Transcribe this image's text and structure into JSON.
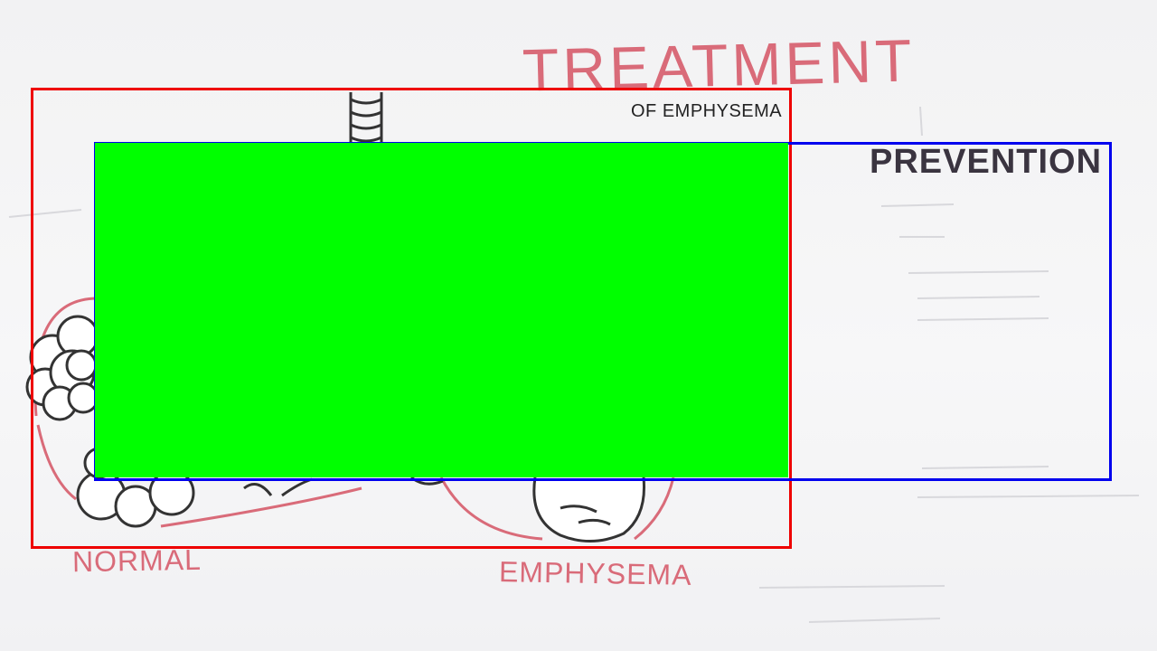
{
  "title": "TREATMENT",
  "subtitle": "OF EMPHYSEMA",
  "prevention_heading": "PREVENTION",
  "labels": {
    "normal": "NORMAL",
    "emphysema": "EMPHYSEMA"
  },
  "colors": {
    "ink_pink": "#d96b79",
    "box_red": "#ee0000",
    "box_blue": "#0000ee",
    "overlay_green": "#00ff00",
    "ink_dark": "#333333"
  }
}
